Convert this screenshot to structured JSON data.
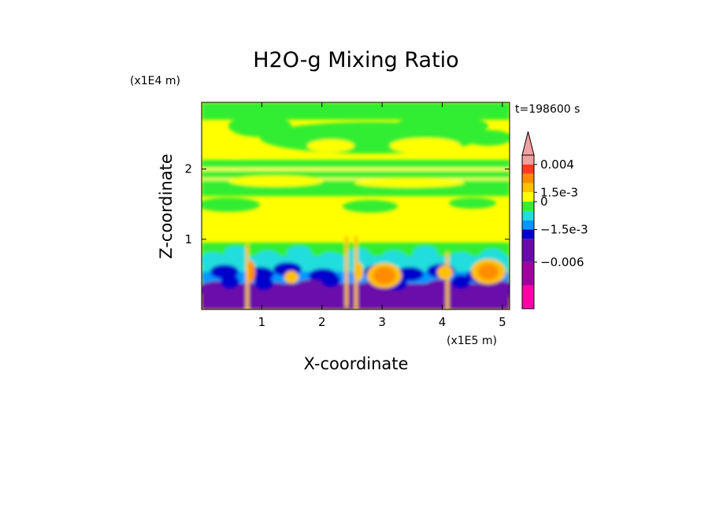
{
  "chart_data": {
    "type": "heatmap",
    "title": "H2O-g Mixing Ratio",
    "xlabel": "X-coordinate",
    "ylabel": "Z-coordinate",
    "x_scale_label": "(x1E5 m)",
    "y_scale_label": "(x1E4 m)",
    "time_label": "t=198600 s",
    "x_ticks": [
      "1",
      "2",
      "3",
      "4",
      "5"
    ],
    "x_tick_values": [
      1,
      2,
      3,
      4,
      5
    ],
    "y_ticks": [
      "1",
      "2"
    ],
    "y_tick_values": [
      1,
      2
    ],
    "xlim": [
      0,
      5.12
    ],
    "ylim": [
      0,
      2.95
    ],
    "colorbar": {
      "labels": [
        "0.004",
        "1.5e-3",
        "0",
        "−1.5e-3",
        "−0.006"
      ],
      "label_values": [
        0.004,
        0.0015,
        0,
        -0.0015,
        -0.006
      ],
      "colors": [
        "#f2a0a0",
        "#ff3b1f",
        "#ff8c00",
        "#ffc000",
        "#ffff00",
        "#33ee33",
        "#22dddd",
        "#0098ff",
        "#0000cc",
        "#6a0aaa",
        "#a000a0",
        "#ff00aa"
      ],
      "extends_max": true
    },
    "layers": [
      {
        "z_range": [
          0.9,
          2.95
        ],
        "dominant": "near 0 (yellow/green)"
      },
      {
        "z_range": [
          0.4,
          0.9
        ],
        "dominant": "-1.5e-3 to 1.5e-3 (green/cyan/blue)"
      },
      {
        "z_range": [
          0,
          0.4
        ],
        "dominant": "-0.006 to -1.5e-3 (purple/blue), with orange cells near x=3.1 and x=4.7"
      }
    ]
  }
}
